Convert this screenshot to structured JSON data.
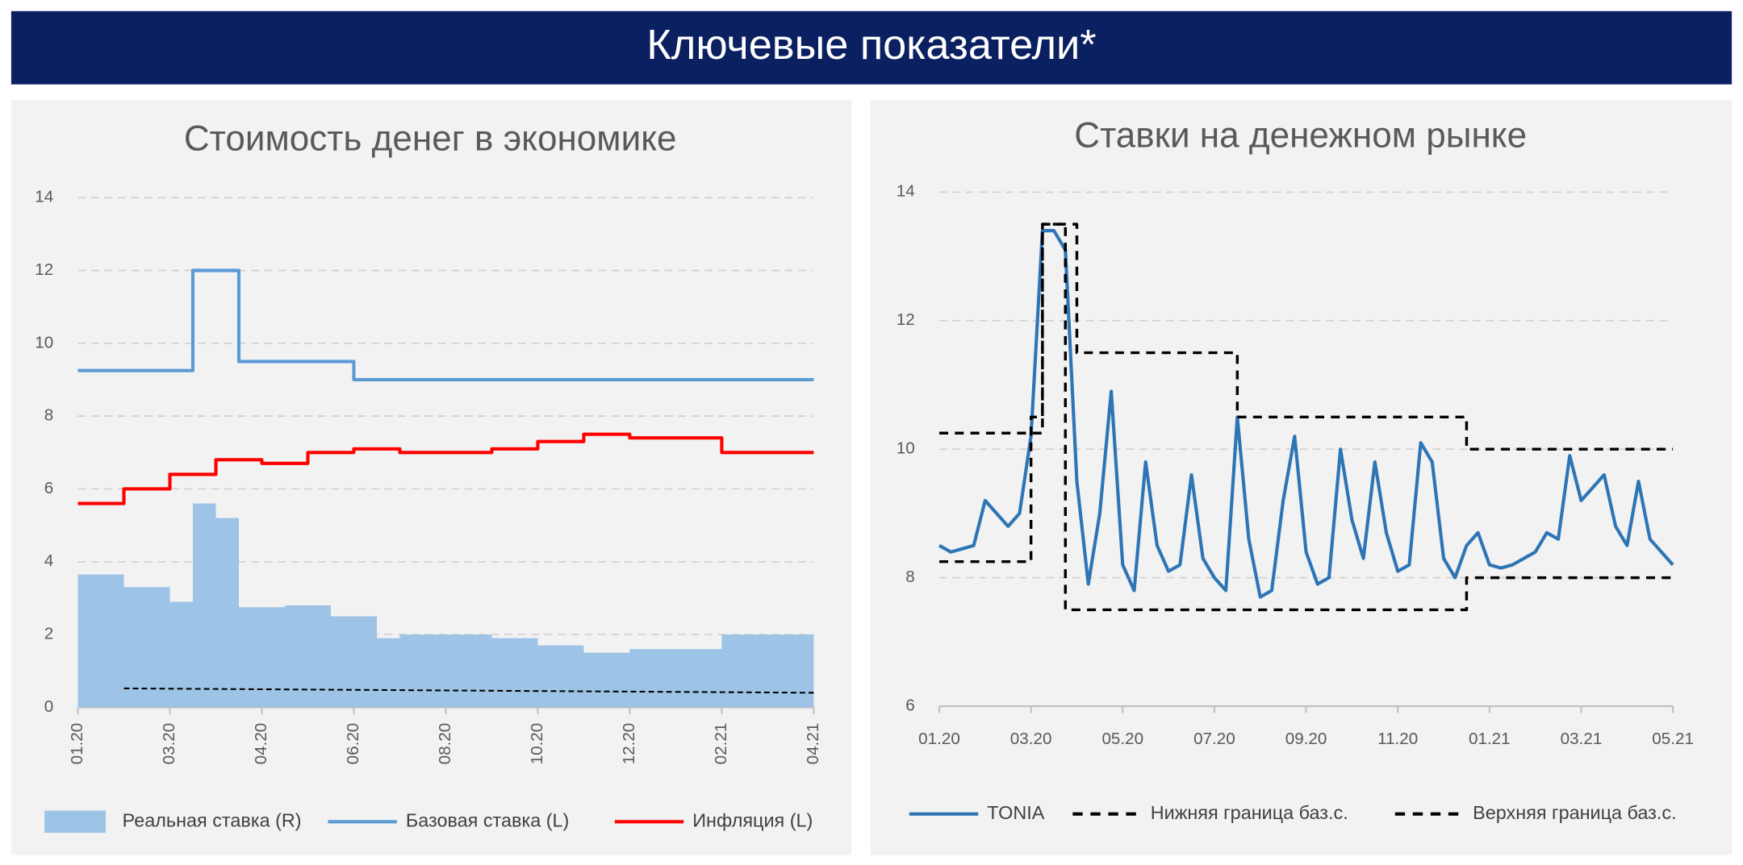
{
  "header": {
    "title": "Ключевые показатели*"
  },
  "chart_data": [
    {
      "type": "line",
      "title": "Стоимость денег в экономике",
      "categories": [
        "01.20",
        null,
        null,
        null,
        "03.20",
        null,
        null,
        null,
        "04.20",
        null,
        null,
        null,
        "06.20",
        null,
        null,
        null,
        "08.20",
        null,
        null,
        null,
        "10.20",
        null,
        null,
        null,
        "12.20",
        null,
        null,
        null,
        "02.21",
        null,
        null,
        null,
        "04.21"
      ],
      "ylim": [
        0,
        14
      ],
      "yticks": [
        0,
        2,
        4,
        6,
        8,
        10,
        12,
        14
      ],
      "grid": true,
      "series": [
        {
          "name": "Реальная ставка (R)",
          "color": "#9dc3e6",
          "step": true,
          "area": true,
          "values": [
            3.65,
            3.65,
            3.3,
            3.3,
            2.9,
            5.6,
            5.2,
            2.75,
            2.75,
            2.8,
            2.8,
            2.5,
            2.5,
            1.9,
            2.0,
            2.0,
            2.0,
            2.0,
            1.9,
            1.9,
            1.7,
            1.7,
            1.5,
            1.5,
            1.6,
            1.6,
            1.6,
            1.6,
            2.0,
            2.0,
            2.0,
            2.0,
            2.0
          ]
        },
        {
          "name": "Базовая ставка (L)",
          "color": "#5b9bd5",
          "step": true,
          "values": [
            9.25,
            9.25,
            9.25,
            9.25,
            9.25,
            12,
            12,
            9.5,
            9.5,
            9.5,
            9.5,
            9.5,
            9.0,
            9.0,
            9.0,
            9.0,
            9.0,
            9.0,
            9.0,
            9.0,
            9.0,
            9.0,
            9.0,
            9.0,
            9.0,
            9.0,
            9.0,
            9.0,
            9.0,
            9.0,
            9.0,
            9.0,
            9.0
          ]
        },
        {
          "name": "Инфляция (L)",
          "color": "#ff0000",
          "step": true,
          "values": [
            5.6,
            5.6,
            6.0,
            6.0,
            6.4,
            6.4,
            6.8,
            6.8,
            6.7,
            6.7,
            7.0,
            7.0,
            7.1,
            7.1,
            7.0,
            7.0,
            7.0,
            7.0,
            7.1,
            7.1,
            7.3,
            7.3,
            7.5,
            7.5,
            7.4,
            7.4,
            7.4,
            7.4,
            7.0,
            7.0,
            7.0,
            7.0,
            7.0
          ]
        },
        {
          "color": "#000000",
          "dashed": true,
          "thin": true,
          "values": [
            null,
            null,
            0.52,
            0.516,
            0.512,
            0.508,
            0.504,
            0.5,
            0.496,
            0.492,
            0.488,
            0.484,
            0.48,
            0.476,
            0.472,
            0.468,
            0.464,
            0.46,
            0.456,
            0.452,
            0.448,
            0.444,
            0.44,
            0.436,
            0.432,
            0.428,
            0.424,
            0.42,
            0.416,
            0.412,
            0.408,
            0.404,
            0.4
          ]
        }
      ]
    },
    {
      "type": "line",
      "title": "Ставки на денежном рынке",
      "categories": [
        "01.20",
        null,
        null,
        null,
        null,
        null,
        null,
        null,
        "03.20",
        null,
        null,
        null,
        null,
        null,
        null,
        null,
        "05.20",
        null,
        null,
        null,
        null,
        null,
        null,
        null,
        "07.20",
        null,
        null,
        null,
        null,
        null,
        null,
        null,
        "09.20",
        null,
        null,
        null,
        null,
        null,
        null,
        null,
        "11.20",
        null,
        null,
        null,
        null,
        null,
        null,
        null,
        "01.21",
        null,
        null,
        null,
        null,
        null,
        null,
        null,
        "03.21",
        null,
        null,
        null,
        null,
        null,
        null,
        null,
        "05.21"
      ],
      "ylim": [
        6,
        14
      ],
      "yticks": [
        6,
        8,
        10,
        12,
        14
      ],
      "grid": true,
      "series": [
        {
          "name": "TONIA",
          "color": "#2e75b6",
          "values": [
            8.5,
            8.4,
            8.45,
            8.5,
            9.2,
            9.0,
            8.8,
            9.0,
            10.2,
            13.4,
            13.4,
            13.1,
            9.5,
            7.9,
            9.0,
            10.9,
            8.2,
            7.8,
            9.8,
            8.5,
            8.1,
            8.2,
            9.6,
            8.3,
            8.0,
            7.8,
            10.5,
            8.6,
            7.7,
            7.8,
            9.2,
            10.2,
            8.4,
            7.9,
            8.0,
            10.0,
            8.9,
            8.3,
            9.8,
            8.7,
            8.1,
            8.2,
            10.1,
            9.8,
            8.3,
            8.0,
            8.5,
            8.7,
            8.2,
            8.15,
            8.2,
            8.3,
            8.4,
            8.7,
            8.6,
            9.9,
            9.2,
            9.4,
            9.6,
            8.8,
            8.5,
            9.5,
            8.6,
            8.4,
            8.2
          ]
        },
        {
          "name": "Нижняя граница баз.с.",
          "color": "#000000",
          "step": true,
          "dashed": true,
          "values": [
            8.25,
            8.25,
            8.25,
            8.25,
            8.25,
            8.25,
            8.25,
            8.25,
            10.5,
            13.5,
            13.5,
            7.5,
            7.5,
            7.5,
            7.5,
            7.5,
            7.5,
            7.5,
            7.5,
            7.5,
            7.5,
            7.5,
            7.5,
            7.5,
            7.5,
            7.5,
            7.5,
            7.5,
            7.5,
            7.5,
            7.5,
            7.5,
            7.5,
            7.5,
            7.5,
            7.5,
            7.5,
            7.5,
            7.5,
            7.5,
            7.5,
            7.5,
            7.5,
            7.5,
            7.5,
            7.5,
            8.0,
            8.0,
            8.0,
            8.0,
            8.0,
            8.0,
            8.0,
            8.0,
            8.0,
            8.0,
            8.0,
            8.0,
            8.0,
            8.0,
            8.0,
            8.0,
            8.0,
            8.0,
            8.0
          ]
        },
        {
          "name": "Верхняя граница баз.с.",
          "color": "#000000",
          "step": true,
          "dashed": true,
          "values": [
            10.25,
            10.25,
            10.25,
            10.25,
            10.25,
            10.25,
            10.25,
            10.25,
            10.25,
            13.5,
            13.5,
            13.5,
            11.5,
            11.5,
            11.5,
            11.5,
            11.5,
            11.5,
            11.5,
            11.5,
            11.5,
            11.5,
            11.5,
            11.5,
            11.5,
            11.5,
            10.5,
            10.5,
            10.5,
            10.5,
            10.5,
            10.5,
            10.5,
            10.5,
            10.5,
            10.5,
            10.5,
            10.5,
            10.5,
            10.5,
            10.5,
            10.5,
            10.5,
            10.5,
            10.5,
            10.5,
            10.0,
            10.0,
            10.0,
            10.0,
            10.0,
            10.0,
            10.0,
            10.0,
            10.0,
            10.0,
            10.0,
            10.0,
            10.0,
            10.0,
            10.0,
            10.0,
            10.0,
            10.0,
            10.0
          ]
        }
      ]
    }
  ]
}
